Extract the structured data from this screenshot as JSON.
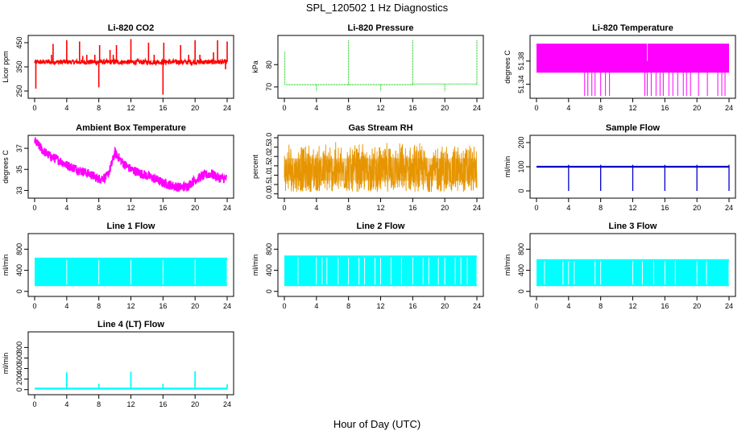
{
  "figure": {
    "title": "SPL_120502  1 Hz Diagnostics",
    "xlabel": "Hour of Day (UTC)"
  },
  "chart_data": [
    {
      "type": "line",
      "title": "Li-820 CO2",
      "ylabel": "Licor ppm",
      "color": "#ff0000",
      "xlim": [
        0,
        24
      ],
      "xticks": [
        0,
        4,
        8,
        12,
        16,
        20,
        24
      ],
      "ylim": [
        230,
        470
      ],
      "yticks": [
        250,
        350,
        450
      ],
      "series": [
        {
          "name": "co2",
          "baseline": 370,
          "band": [
            360,
            380
          ],
          "events": [
            {
              "x": 0.15,
              "y": 260
            },
            {
              "x": 2.1,
              "y": 400
            },
            {
              "x": 2.3,
              "y": 445
            },
            {
              "x": 4.0,
              "y": 460
            },
            {
              "x": 5.6,
              "y": 455
            },
            {
              "x": 6.0,
              "y": 395
            },
            {
              "x": 6.5,
              "y": 400
            },
            {
              "x": 7.5,
              "y": 400
            },
            {
              "x": 8.0,
              "y": 265
            },
            {
              "x": 8.1,
              "y": 440
            },
            {
              "x": 9.4,
              "y": 420
            },
            {
              "x": 9.8,
              "y": 400
            },
            {
              "x": 10.2,
              "y": 440
            },
            {
              "x": 12.0,
              "y": 465
            },
            {
              "x": 14.2,
              "y": 450
            },
            {
              "x": 14.9,
              "y": 400
            },
            {
              "x": 16.0,
              "y": 235
            },
            {
              "x": 16.1,
              "y": 450
            },
            {
              "x": 18.2,
              "y": 440
            },
            {
              "x": 19.2,
              "y": 400
            },
            {
              "x": 20.0,
              "y": 460
            },
            {
              "x": 20.6,
              "y": 400
            },
            {
              "x": 22.3,
              "y": 410
            },
            {
              "x": 22.8,
              "y": 460
            },
            {
              "x": 23.8,
              "y": 340
            },
            {
              "x": 24.0,
              "y": 455
            }
          ]
        }
      ]
    },
    {
      "type": "line",
      "title": "Li-820 Pressure",
      "ylabel": "kPa",
      "color": "#00cc00",
      "xlim": [
        0,
        24
      ],
      "xticks": [
        0,
        4,
        8,
        12,
        16,
        20,
        24
      ],
      "ylim": [
        66,
        92
      ],
      "yticks": [
        70,
        80
      ],
      "series": [
        {
          "name": "pressure",
          "segments": [
            [
              0.2,
              24,
              71
            ]
          ],
          "step": [
            {
              "x": 16,
              "y": 71.3
            }
          ],
          "spikes": [
            {
              "x": 0.05,
              "y": 86
            },
            {
              "x": 8.0,
              "y": 91
            },
            {
              "x": 16.0,
              "y": 91
            },
            {
              "x": 24.0,
              "y": 91
            }
          ],
          "dips": [
            {
              "x": 4.0,
              "y": 68
            },
            {
              "x": 12.0,
              "y": 68
            },
            {
              "x": 20.0,
              "y": 68
            }
          ]
        }
      ]
    },
    {
      "type": "line",
      "title": "Li-820 Temperature",
      "ylabel": "degrees C",
      "color": "#ff00ff",
      "xlim": [
        0,
        24
      ],
      "xticks": [
        0,
        4,
        8,
        12,
        16,
        20,
        24
      ],
      "ylim": [
        51.32,
        51.42
      ],
      "yticks": [
        51.34,
        51.38
      ],
      "series": [
        {
          "name": "temperature",
          "band": [
            51.36,
            51.41
          ],
          "low": 51.32,
          "dropouts": [
            6.0,
            6.4,
            6.9,
            7.3,
            8.0,
            8.6,
            9.1,
            13.5,
            13.8,
            14.3,
            14.9,
            15.4,
            15.8,
            16.5,
            17.0,
            17.6,
            18.3,
            18.7,
            19.2,
            20.2,
            21.3,
            22.6,
            23.1,
            23.5
          ]
        }
      ]
    },
    {
      "type": "line",
      "title": "Ambient Box Temperature",
      "ylabel": "degrees C",
      "color": "#ff00ff",
      "xlim": [
        0,
        24
      ],
      "xticks": [
        0,
        4,
        8,
        12,
        16,
        20,
        24
      ],
      "ylim": [
        32.5,
        38
      ],
      "yticks": [
        33,
        35,
        37
      ],
      "series": [
        {
          "name": "box_temp",
          "x": [
            0,
            1,
            2,
            3,
            4,
            5,
            6,
            7,
            8,
            9,
            9.5,
            10,
            10.5,
            11,
            12,
            13,
            14,
            15,
            16,
            17,
            18,
            19,
            20,
            21,
            22,
            23,
            24
          ],
          "y": [
            37.7,
            36.8,
            36.2,
            35.9,
            35.4,
            35.1,
            34.8,
            34.5,
            34.1,
            34.3,
            35.2,
            36.6,
            36.1,
            35.6,
            35.0,
            34.7,
            34.4,
            34.1,
            33.7,
            33.5,
            33.3,
            33.4,
            34.0,
            34.4,
            34.6,
            34.2,
            34.1
          ],
          "noise": 0.45
        }
      ]
    },
    {
      "type": "line",
      "title": "Gas Stream RH",
      "ylabel": "percent",
      "color": "#e69500",
      "xlim": [
        0,
        24
      ],
      "xticks": [
        0,
        4,
        8,
        12,
        16,
        20,
        24
      ],
      "ylim": [
        -0.1,
        3.0
      ],
      "yticks": [
        0.0,
        0.5,
        1.0,
        1.5,
        2.0,
        2.5,
        3.0
      ],
      "series": [
        {
          "name": "rh",
          "center": 1.3,
          "range": [
            0.1,
            2.9
          ]
        }
      ]
    },
    {
      "type": "line",
      "title": "Sample Flow",
      "ylabel": "ml/min",
      "color": "#0000cc",
      "xlim": [
        0,
        24
      ],
      "xticks": [
        0,
        4,
        8,
        12,
        16,
        20,
        24
      ],
      "ylim": [
        -20,
        220
      ],
      "yticks": [
        0,
        100,
        200
      ],
      "series": [
        {
          "name": "sample_flow",
          "baseline": 100,
          "dips": [
            {
              "x": 4.0,
              "y": 0
            },
            {
              "x": 8.0,
              "y": 0
            },
            {
              "x": 12.0,
              "y": 0
            },
            {
              "x": 16.0,
              "y": 0
            },
            {
              "x": 20.0,
              "y": 0
            },
            {
              "x": 24.0,
              "y": 0
            }
          ]
        }
      ]
    },
    {
      "type": "area",
      "title": "Line 1 Flow",
      "ylabel": "ml/min",
      "color": "#00ffff",
      "xlim": [
        0,
        24
      ],
      "xticks": [
        0,
        4,
        8,
        12,
        16,
        20,
        24
      ],
      "ylim": [
        -50,
        1050
      ],
      "yticks": [
        0,
        400,
        800
      ],
      "series": [
        {
          "name": "line1",
          "band": [
            100,
            640
          ],
          "gaps": [
            4.0,
            8.0,
            12.0,
            16.0,
            20.0,
            24.0
          ],
          "spikes": []
        }
      ]
    },
    {
      "type": "area",
      "title": "Line 2 Flow",
      "ylabel": "ml/min",
      "color": "#00ffff",
      "xlim": [
        0,
        24
      ],
      "xticks": [
        0,
        4,
        8,
        12,
        16,
        20,
        24
      ],
      "ylim": [
        -50,
        1050
      ],
      "yticks": [
        0,
        400,
        800
      ],
      "series": [
        {
          "name": "line2",
          "band": [
            100,
            680
          ],
          "gaps": [
            1.7,
            4.0,
            4.7,
            5.3,
            6.7,
            8.0,
            9.3,
            10.0,
            11.3,
            12.0,
            13.3,
            14.6,
            16.0,
            17.3,
            18.0,
            19.2,
            20.0,
            21.3,
            22.0,
            22.8,
            24.0
          ],
          "spikes": []
        }
      ]
    },
    {
      "type": "area",
      "title": "Line 3 Flow",
      "ylabel": "ml/min",
      "color": "#00ffff",
      "xlim": [
        0,
        24
      ],
      "xticks": [
        0,
        4,
        8,
        12,
        16,
        20,
        24
      ],
      "ylim": [
        -50,
        1050
      ],
      "yticks": [
        0,
        400,
        800
      ],
      "series": [
        {
          "name": "line3",
          "band": [
            100,
            610
          ],
          "gaps": [
            1.0,
            3.3,
            4.0,
            4.7,
            7.3,
            8.0,
            12.0,
            13.2,
            14.6,
            16.0,
            17.3,
            20.0,
            21.2,
            24.0
          ],
          "spikes": []
        }
      ]
    },
    {
      "type": "line",
      "title": "Line 4 (LT) Flow",
      "ylabel": "ml/min",
      "color": "#00ffff",
      "xlim": [
        0,
        24
      ],
      "xticks": [
        0,
        4,
        8,
        12,
        16,
        20,
        24
      ],
      "ylim": [
        -50,
        1050
      ],
      "yticks": [
        0,
        200,
        400,
        600,
        800
      ],
      "series": [
        {
          "name": "line4",
          "baseline": 20,
          "spikes": [
            {
              "x": 4.0,
              "y": 330
            },
            {
              "x": 8.0,
              "y": 110
            },
            {
              "x": 12.0,
              "y": 340
            },
            {
              "x": 16.0,
              "y": 110
            },
            {
              "x": 20.0,
              "y": 350
            },
            {
              "x": 24.0,
              "y": 100
            }
          ]
        }
      ]
    }
  ]
}
